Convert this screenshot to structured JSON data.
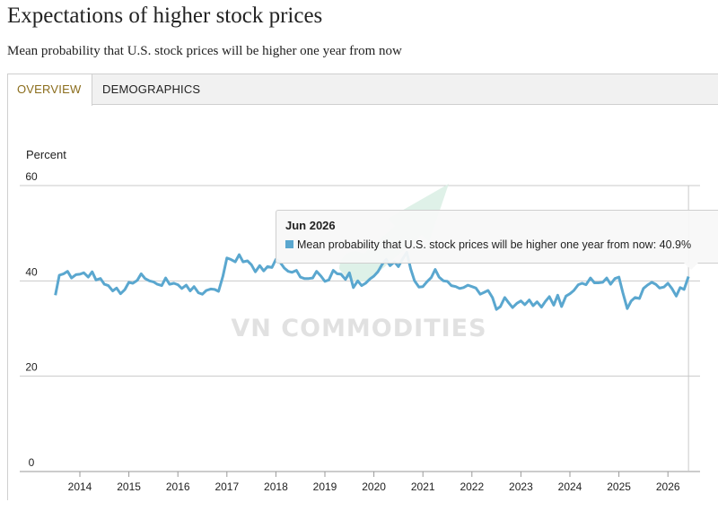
{
  "header": {
    "title": "Expectations of higher stock prices",
    "subtitle": "Mean probability that U.S. stock prices will be higher one year from now"
  },
  "tabs": [
    {
      "label": "OVERVIEW",
      "active": true
    },
    {
      "label": "DEMOGRAPHICS",
      "active": false
    }
  ],
  "watermark": "VN COMMODITIES",
  "colors": {
    "series": "#5aa7cf",
    "accent_tab": "#8b6d1c",
    "grid": "#c9c9c9"
  },
  "tooltip": {
    "date": "Jun 2026",
    "series_label": "Mean probability that U.S. stock prices will be higher one year from now:",
    "value_text": "40.9%"
  },
  "chart_data": {
    "type": "line",
    "ylabel": "Percent",
    "ylim": [
      0,
      60
    ],
    "yticks": [
      0,
      20,
      40,
      60
    ],
    "xlim": [
      2013.4,
      2026.5
    ],
    "xticks": [
      2014,
      2015,
      2016,
      2017,
      2018,
      2019,
      2020,
      2021,
      2022,
      2023,
      2024,
      2025,
      2026
    ],
    "grid": true,
    "series": [
      {
        "name": "Mean probability that U.S. stock prices will be higher one year from now",
        "points": [
          [
            2013.5,
            37.0
          ],
          [
            2013.58,
            41.2
          ],
          [
            2013.67,
            41.5
          ],
          [
            2013.75,
            42.0
          ],
          [
            2013.83,
            40.6
          ],
          [
            2013.92,
            41.3
          ],
          [
            2014.0,
            41.4
          ],
          [
            2014.08,
            41.7
          ],
          [
            2014.17,
            40.8
          ],
          [
            2014.25,
            41.9
          ],
          [
            2014.33,
            40.2
          ],
          [
            2014.42,
            40.5
          ],
          [
            2014.5,
            39.3
          ],
          [
            2014.58,
            39.0
          ],
          [
            2014.67,
            37.9
          ],
          [
            2014.75,
            38.5
          ],
          [
            2014.83,
            37.3
          ],
          [
            2014.92,
            38.2
          ],
          [
            2015.0,
            39.7
          ],
          [
            2015.08,
            39.5
          ],
          [
            2015.17,
            40.1
          ],
          [
            2015.25,
            41.5
          ],
          [
            2015.33,
            40.5
          ],
          [
            2015.42,
            40.0
          ],
          [
            2015.5,
            39.8
          ],
          [
            2015.58,
            39.3
          ],
          [
            2015.67,
            39.0
          ],
          [
            2015.75,
            40.6
          ],
          [
            2015.83,
            39.3
          ],
          [
            2015.92,
            39.5
          ],
          [
            2016.0,
            39.2
          ],
          [
            2016.08,
            38.4
          ],
          [
            2016.17,
            39.1
          ],
          [
            2016.25,
            37.9
          ],
          [
            2016.33,
            38.8
          ],
          [
            2016.42,
            37.5
          ],
          [
            2016.5,
            37.2
          ],
          [
            2016.58,
            38.0
          ],
          [
            2016.67,
            38.3
          ],
          [
            2016.75,
            38.2
          ],
          [
            2016.83,
            37.8
          ],
          [
            2016.92,
            41.0
          ],
          [
            2017.0,
            44.8
          ],
          [
            2017.08,
            44.5
          ],
          [
            2017.17,
            44.0
          ],
          [
            2017.25,
            45.5
          ],
          [
            2017.33,
            44.0
          ],
          [
            2017.42,
            44.2
          ],
          [
            2017.5,
            43.4
          ],
          [
            2017.58,
            41.9
          ],
          [
            2017.67,
            43.2
          ],
          [
            2017.75,
            42.1
          ],
          [
            2017.83,
            43.0
          ],
          [
            2017.92,
            42.8
          ],
          [
            2018.0,
            44.5
          ],
          [
            2018.08,
            44.0
          ],
          [
            2018.17,
            42.7
          ],
          [
            2018.25,
            42.0
          ],
          [
            2018.33,
            41.8
          ],
          [
            2018.42,
            42.2
          ],
          [
            2018.5,
            40.8
          ],
          [
            2018.58,
            40.5
          ],
          [
            2018.67,
            40.5
          ],
          [
            2018.75,
            40.6
          ],
          [
            2018.83,
            42.0
          ],
          [
            2018.92,
            41.0
          ],
          [
            2019.0,
            39.9
          ],
          [
            2019.08,
            40.2
          ],
          [
            2019.17,
            42.2
          ],
          [
            2019.25,
            41.5
          ],
          [
            2019.33,
            41.4
          ],
          [
            2019.42,
            40.3
          ],
          [
            2019.5,
            41.7
          ],
          [
            2019.58,
            38.6
          ],
          [
            2019.67,
            40.0
          ],
          [
            2019.75,
            39.0
          ],
          [
            2019.83,
            39.5
          ],
          [
            2019.92,
            40.4
          ],
          [
            2020.0,
            41.0
          ],
          [
            2020.08,
            41.9
          ],
          [
            2020.17,
            43.5
          ],
          [
            2020.25,
            44.5
          ],
          [
            2020.33,
            43.2
          ],
          [
            2020.42,
            44.0
          ],
          [
            2020.5,
            43.0
          ],
          [
            2020.58,
            44.5
          ],
          [
            2020.67,
            46.0
          ],
          [
            2020.75,
            42.5
          ],
          [
            2020.83,
            40.0
          ],
          [
            2020.92,
            38.7
          ],
          [
            2021.0,
            38.8
          ],
          [
            2021.08,
            39.8
          ],
          [
            2021.17,
            40.7
          ],
          [
            2021.25,
            42.4
          ],
          [
            2021.33,
            40.8
          ],
          [
            2021.42,
            40.0
          ],
          [
            2021.5,
            39.9
          ],
          [
            2021.58,
            39.0
          ],
          [
            2021.67,
            38.8
          ],
          [
            2021.75,
            38.4
          ],
          [
            2021.83,
            38.6
          ],
          [
            2021.92,
            39.1
          ],
          [
            2022.0,
            38.8
          ],
          [
            2022.08,
            38.5
          ],
          [
            2022.17,
            37.2
          ],
          [
            2022.25,
            37.6
          ],
          [
            2022.33,
            38.0
          ],
          [
            2022.42,
            36.5
          ],
          [
            2022.5,
            34.0
          ],
          [
            2022.58,
            34.6
          ],
          [
            2022.67,
            36.5
          ],
          [
            2022.75,
            35.4
          ],
          [
            2022.83,
            34.4
          ],
          [
            2022.92,
            35.3
          ],
          [
            2023.0,
            35.8
          ],
          [
            2023.08,
            35.0
          ],
          [
            2023.17,
            36.0
          ],
          [
            2023.25,
            34.8
          ],
          [
            2023.33,
            35.6
          ],
          [
            2023.42,
            34.5
          ],
          [
            2023.5,
            35.7
          ],
          [
            2023.58,
            36.7
          ],
          [
            2023.67,
            34.9
          ],
          [
            2023.75,
            37.0
          ],
          [
            2023.83,
            34.6
          ],
          [
            2023.92,
            36.8
          ],
          [
            2024.0,
            37.3
          ],
          [
            2024.08,
            38.0
          ],
          [
            2024.17,
            39.2
          ],
          [
            2024.25,
            39.5
          ],
          [
            2024.33,
            39.2
          ],
          [
            2024.42,
            40.6
          ],
          [
            2024.5,
            39.6
          ],
          [
            2024.58,
            39.6
          ],
          [
            2024.67,
            39.7
          ],
          [
            2024.75,
            40.6
          ],
          [
            2024.83,
            39.3
          ],
          [
            2024.92,
            40.5
          ],
          [
            2025.0,
            40.8
          ],
          [
            2025.08,
            37.5
          ],
          [
            2025.17,
            34.2
          ],
          [
            2025.25,
            35.8
          ],
          [
            2025.33,
            36.5
          ],
          [
            2025.42,
            36.3
          ],
          [
            2025.5,
            38.4
          ],
          [
            2025.58,
            39.1
          ],
          [
            2025.67,
            39.7
          ],
          [
            2025.75,
            39.3
          ],
          [
            2025.83,
            38.5
          ],
          [
            2025.92,
            38.7
          ],
          [
            2026.0,
            39.5
          ],
          [
            2026.08,
            38.4
          ],
          [
            2026.17,
            36.8
          ],
          [
            2026.25,
            38.6
          ],
          [
            2026.33,
            38.2
          ],
          [
            2026.42,
            40.9
          ]
        ]
      }
    ]
  }
}
